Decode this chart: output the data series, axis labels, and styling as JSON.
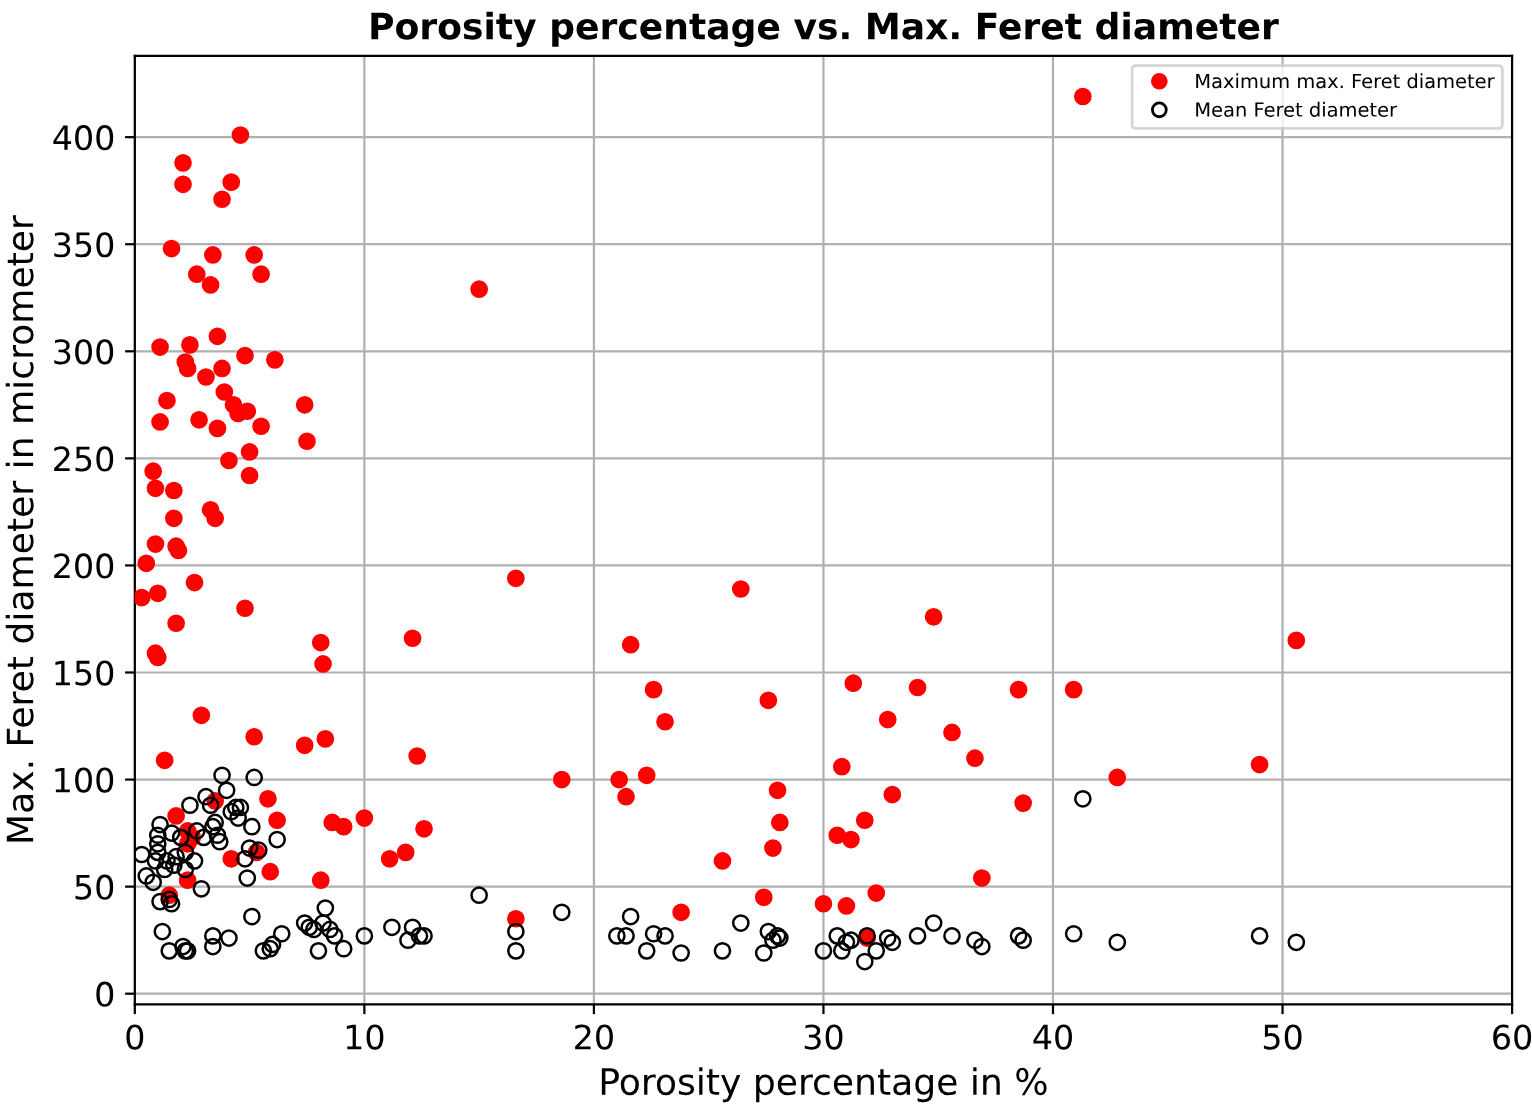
{
  "chart_data": {
    "type": "scatter",
    "title": "Porosity percentage vs. Max. Feret diameter",
    "xlabel": "Porosity percentage in %",
    "ylabel": "Max. Feret diameter in micrometer",
    "xlim": [
      0,
      60
    ],
    "ylim": [
      -5,
      438
    ],
    "xticks": [
      0,
      10,
      20,
      30,
      40,
      50,
      60
    ],
    "yticks": [
      0,
      50,
      100,
      150,
      200,
      250,
      300,
      350,
      400
    ],
    "grid": true,
    "legend": "top right",
    "marker": "circle",
    "series": [
      {
        "name": "Maximum max. Feret diameter",
        "color": "#ff0000",
        "x": [
          2.1,
          2.1,
          4.6,
          4.2,
          3.8,
          1.6,
          3.4,
          2.7,
          5.2,
          5.5,
          3.3,
          15,
          2.4,
          1.1,
          3.6,
          2.2,
          2.3,
          4.8,
          6.1,
          3.8,
          3.1,
          3.9,
          1.4,
          4.3,
          4.5,
          4.9,
          7.4,
          2.8,
          1.1,
          3.6,
          5.5,
          4.1,
          7.5,
          0.8,
          0.9,
          1.7,
          5.0,
          5.0,
          3.3,
          3.5,
          1.7,
          0.9,
          1.8,
          1.9,
          0.5,
          2.6,
          16.6,
          1.0,
          0.3,
          4.8,
          1.8,
          8.1,
          12.1,
          0.9,
          1.0,
          8.2,
          2.9,
          5.2,
          8.3,
          7.4,
          12.3,
          1.3,
          10.0,
          8.6,
          9.1,
          12.6,
          6.2,
          1.8,
          5.8,
          3.5,
          2.3,
          2.5,
          2.3,
          4.2,
          2.3,
          1.5,
          5.9,
          8.1,
          11.1,
          11.8,
          16.6,
          5.3,
          18.6,
          21.1,
          21.4,
          21.6,
          22.3,
          22.6,
          23.1,
          23.8,
          25.6,
          26.4,
          27.4,
          27.6,
          27.8,
          28.0,
          28.1,
          30.0,
          30.6,
          30.8,
          31.0,
          31.2,
          31.3,
          31.8,
          31.9,
          32.3,
          32.8,
          33.0,
          34.1,
          34.8,
          35.6,
          36.6,
          36.9,
          38.5,
          38.7,
          40.9,
          41.3,
          42.8,
          49.0,
          50.6
        ],
        "values": [
          388,
          378,
          401,
          379,
          371,
          348,
          345,
          336,
          345,
          336,
          331,
          329,
          303,
          302,
          307,
          295,
          292,
          298,
          296,
          292,
          288,
          281,
          277,
          275,
          271,
          272,
          275,
          268,
          267,
          264,
          265,
          249,
          258,
          244,
          236,
          235,
          253,
          242,
          226,
          222,
          222,
          210,
          209,
          207,
          201,
          192,
          194,
          187,
          185,
          180,
          173,
          164,
          166,
          159,
          157,
          154,
          130,
          120,
          119,
          116,
          111,
          109,
          82,
          80,
          78,
          77,
          81,
          83,
          91,
          90,
          76,
          73,
          70,
          63,
          53,
          46,
          57,
          53,
          63,
          66,
          35,
          66,
          100,
          100,
          92,
          163,
          102,
          142,
          127,
          38,
          62,
          189,
          45,
          137,
          68,
          95,
          80,
          42,
          74,
          106,
          41,
          72,
          145,
          81,
          26,
          47,
          128,
          93,
          143,
          176,
          122,
          110,
          54,
          142,
          89,
          142,
          419,
          101,
          107,
          165
        ]
      },
      {
        "name": "Mean Feret diameter",
        "color": "#000000",
        "x": [
          0.3,
          0.5,
          0.8,
          0.9,
          1.0,
          1.0,
          1.0,
          1.1,
          1.1,
          1.3,
          1.4,
          1.5,
          1.6,
          1.7,
          1.8,
          1.6,
          2.0,
          2.2,
          2.2,
          2.4,
          2.6,
          2.7,
          2.9,
          3.0,
          3.1,
          3.3,
          3.4,
          3.5,
          3.6,
          3.7,
          3.8,
          4.0,
          4.2,
          4.4,
          4.5,
          4.6,
          4.8,
          4.9,
          5.0,
          5.1,
          5.2,
          5.4,
          6.2,
          1.2,
          2.1,
          2.2,
          2.3,
          1.5,
          3.4,
          3.4,
          4.1,
          5.1,
          5.6,
          5.9,
          6.0,
          6.4,
          7.4,
          7.6,
          7.8,
          8.0,
          8.2,
          8.3,
          8.5,
          8.7,
          9.1,
          10.0,
          11.2,
          11.9,
          12.1,
          12.4,
          12.6,
          15.0,
          16.6,
          16.6,
          18.6,
          21.0,
          21.4,
          21.6,
          22.3,
          22.6,
          23.1,
          23.8,
          25.6,
          26.4,
          27.4,
          27.6,
          27.8,
          28.0,
          28.1,
          30.0,
          30.6,
          30.8,
          31.0,
          31.2,
          31.8,
          31.9,
          32.3,
          32.8,
          33.0,
          34.1,
          34.8,
          35.6,
          36.6,
          36.9,
          38.5,
          38.7,
          40.9,
          41.3,
          42.8,
          49.0,
          50.6
        ],
        "values": [
          65,
          55,
          52,
          62,
          66,
          70,
          74,
          79,
          43,
          58,
          62,
          44,
          42,
          60,
          64,
          75,
          73,
          58,
          66,
          88,
          62,
          76,
          49,
          73,
          92,
          88,
          78,
          80,
          74,
          71,
          102,
          95,
          85,
          87,
          82,
          87,
          63,
          54,
          68,
          78,
          101,
          67,
          72,
          29,
          22,
          20,
          20,
          20,
          27,
          22,
          26,
          36,
          20,
          21,
          23,
          28,
          33,
          31,
          30,
          20,
          33,
          40,
          30,
          27,
          21,
          27,
          31,
          25,
          31,
          27,
          27,
          46,
          29,
          20,
          38,
          27,
          27,
          36,
          20,
          28,
          27,
          19,
          20,
          33,
          19,
          29,
          25,
          27,
          26,
          20,
          27,
          20,
          24,
          25,
          15,
          27,
          20,
          26,
          24,
          27,
          33,
          27,
          25,
          22,
          27,
          25,
          28,
          91,
          24,
          27,
          24
        ]
      }
    ]
  }
}
